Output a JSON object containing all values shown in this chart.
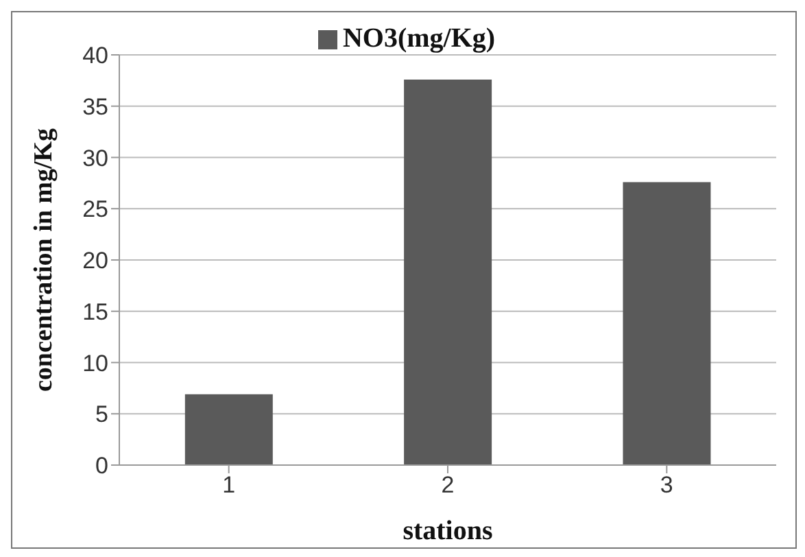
{
  "chart_data": {
    "type": "bar",
    "categories": [
      "1",
      "2",
      "3"
    ],
    "series": [
      {
        "name": "NO3(mg/Kg)",
        "color": "#5a5a5a",
        "values": [
          6.9,
          37.6,
          27.6
        ]
      }
    ],
    "ylim": [
      0,
      40
    ],
    "yticks": [
      0,
      5,
      10,
      15,
      20,
      25,
      30,
      35,
      40
    ],
    "grid": "y",
    "legend": "top",
    "xlabel": "stations",
    "ylabel": "concentration in mg/Kg"
  }
}
